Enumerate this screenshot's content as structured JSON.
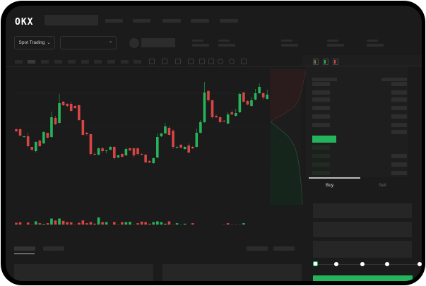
{
  "header": {
    "logo": "OKX"
  },
  "toolbar": {
    "market_selector": "Spot Trading",
    "market_selector_icon": "chevron-down-icon",
    "pair_selector_icon": "chevron-down-icon"
  },
  "orderbook": {
    "view_icons": [
      "orderbook-both-icon",
      "orderbook-bids-icon",
      "orderbook-asks-icon"
    ]
  },
  "trade_form": {
    "tabs": [
      {
        "label": "Buy",
        "active": true
      },
      {
        "label": "Sell",
        "active": false
      }
    ],
    "slider_percent": 0,
    "slider_stops": [
      0,
      25,
      50,
      75,
      100
    ]
  },
  "colors": {
    "up": "#26b35a",
    "down": "#d84545",
    "accent": "#24b55c",
    "background": "#1b1b1b"
  },
  "chart_data": {
    "type": "candlestick",
    "candles": [
      {
        "o": 118,
        "c": 115,
        "h": 119,
        "l": 114
      },
      {
        "o": 118,
        "c": 109,
        "h": 119,
        "l": 108
      },
      {
        "o": 107,
        "c": 108,
        "h": 109,
        "l": 106
      },
      {
        "o": 108,
        "c": 94,
        "h": 113,
        "l": 92
      },
      {
        "o": 93,
        "c": 89,
        "h": 93,
        "l": 87
      },
      {
        "o": 87,
        "c": 100,
        "h": 101,
        "l": 85
      },
      {
        "o": 102,
        "c": 94,
        "h": 103,
        "l": 93
      },
      {
        "o": 98,
        "c": 114,
        "h": 115,
        "l": 97
      },
      {
        "o": 113,
        "c": 106,
        "h": 113,
        "l": 105
      },
      {
        "o": 107,
        "c": 135,
        "h": 143,
        "l": 106
      },
      {
        "o": 134,
        "c": 125,
        "h": 137,
        "l": 124
      },
      {
        "o": 127,
        "c": 155,
        "h": 168,
        "l": 126
      },
      {
        "o": 157,
        "c": 152,
        "h": 158,
        "l": 151
      },
      {
        "o": 154,
        "c": 151,
        "h": 155,
        "l": 149
      },
      {
        "o": 154,
        "c": 144,
        "h": 157,
        "l": 143
      },
      {
        "o": 151,
        "c": 148,
        "h": 152,
        "l": 147
      },
      {
        "o": 152,
        "c": 131,
        "h": 153,
        "l": 130
      },
      {
        "o": 131,
        "c": 110,
        "h": 131,
        "l": 109
      },
      {
        "o": 113,
        "c": 111,
        "h": 114,
        "l": 109
      },
      {
        "o": 111,
        "c": 83,
        "h": 112,
        "l": 81
      },
      {
        "o": 83,
        "c": 82,
        "h": 85,
        "l": 81
      },
      {
        "o": 82,
        "c": 91,
        "h": 92,
        "l": 81
      },
      {
        "o": 91,
        "c": 87,
        "h": 93,
        "l": 85
      },
      {
        "o": 87,
        "c": 88,
        "h": 89,
        "l": 84
      },
      {
        "o": 89,
        "c": 93,
        "h": 94,
        "l": 88
      },
      {
        "o": 93,
        "c": 77,
        "h": 94,
        "l": 75
      },
      {
        "o": 78,
        "c": 81,
        "h": 82,
        "l": 77
      },
      {
        "o": 83,
        "c": 79,
        "h": 84,
        "l": 78
      },
      {
        "o": 81,
        "c": 90,
        "h": 92,
        "l": 80
      },
      {
        "o": 91,
        "c": 88,
        "h": 92,
        "l": 87
      },
      {
        "o": 91,
        "c": 81,
        "h": 92,
        "l": 78
      },
      {
        "o": 91,
        "c": 83,
        "h": 92,
        "l": 81
      },
      {
        "o": 83,
        "c": 82,
        "h": 84,
        "l": 81
      },
      {
        "o": 82,
        "c": 71,
        "h": 83,
        "l": 70
      },
      {
        "o": 73,
        "c": 71,
        "h": 74,
        "l": 70
      },
      {
        "o": 70,
        "c": 77,
        "h": 78,
        "l": 69
      },
      {
        "o": 78,
        "c": 107,
        "h": 112,
        "l": 77
      },
      {
        "o": 108,
        "c": 112,
        "h": 113,
        "l": 107
      },
      {
        "o": 112,
        "c": 122,
        "h": 127,
        "l": 111
      },
      {
        "o": 120,
        "c": 110,
        "h": 122,
        "l": 109
      },
      {
        "o": 116,
        "c": 93,
        "h": 118,
        "l": 90
      },
      {
        "o": 92,
        "c": 93,
        "h": 95,
        "l": 90
      },
      {
        "o": 96,
        "c": 92,
        "h": 97,
        "l": 91
      },
      {
        "o": 90,
        "c": 93,
        "h": 94,
        "l": 89
      },
      {
        "o": 95,
        "c": 85,
        "h": 98,
        "l": 84
      },
      {
        "o": 93,
        "c": 91,
        "h": 94,
        "l": 90
      },
      {
        "o": 93,
        "c": 113,
        "h": 119,
        "l": 92
      },
      {
        "o": 113,
        "c": 128,
        "h": 131,
        "l": 112
      },
      {
        "o": 128,
        "c": 170,
        "h": 185,
        "l": 127
      },
      {
        "o": 172,
        "c": 159,
        "h": 174,
        "l": 157
      },
      {
        "o": 159,
        "c": 135,
        "h": 160,
        "l": 133
      },
      {
        "o": 137,
        "c": 135,
        "h": 139,
        "l": 134
      },
      {
        "o": 135,
        "c": 128,
        "h": 136,
        "l": 127
      },
      {
        "o": 130,
        "c": 129,
        "h": 131,
        "l": 128
      },
      {
        "o": 126,
        "c": 139,
        "h": 142,
        "l": 125
      },
      {
        "o": 142,
        "c": 139,
        "h": 145,
        "l": 138
      },
      {
        "o": 137,
        "c": 141,
        "h": 147,
        "l": 136
      },
      {
        "o": 142,
        "c": 168,
        "h": 170,
        "l": 141
      },
      {
        "o": 170,
        "c": 157,
        "h": 171,
        "l": 156
      },
      {
        "o": 158,
        "c": 153,
        "h": 159,
        "l": 152
      },
      {
        "o": 151,
        "c": 159,
        "h": 164,
        "l": 150
      },
      {
        "o": 160,
        "c": 169,
        "h": 175,
        "l": 159
      },
      {
        "o": 169,
        "c": 178,
        "h": 183,
        "l": 168
      },
      {
        "o": 169,
        "c": 163,
        "h": 170,
        "l": 160
      },
      {
        "o": 161,
        "c": 167,
        "h": 174,
        "l": 160
      }
    ],
    "volume": [
      32,
      34,
      20,
      33,
      25,
      38,
      30,
      27,
      30,
      50,
      42,
      50,
      40,
      35,
      34,
      25,
      32,
      42,
      30,
      35,
      28,
      55,
      35,
      35,
      20,
      35,
      25,
      35,
      35,
      36,
      25,
      30,
      37,
      35,
      28,
      35,
      38,
      35,
      28,
      38,
      25,
      30,
      25,
      28,
      18,
      30,
      5,
      7,
      10,
      20,
      20,
      22,
      18,
      25,
      30,
      25,
      25,
      25,
      30,
      20,
      18,
      10,
      8,
      10,
      12
    ],
    "volume_up": [
      false,
      false,
      true,
      false,
      false,
      true,
      false,
      true,
      false,
      true,
      false,
      true,
      false,
      false,
      false,
      false,
      false,
      false,
      false,
      false,
      false,
      true,
      false,
      true,
      true,
      false,
      true,
      false,
      true,
      true,
      false,
      false,
      false,
      false,
      false,
      true,
      true,
      true,
      true,
      false,
      false,
      true,
      true,
      true,
      true,
      false,
      false,
      true,
      false,
      true,
      true,
      true,
      false,
      true,
      false,
      false,
      true,
      false,
      true,
      true,
      true,
      true,
      false,
      true,
      true
    ]
  }
}
